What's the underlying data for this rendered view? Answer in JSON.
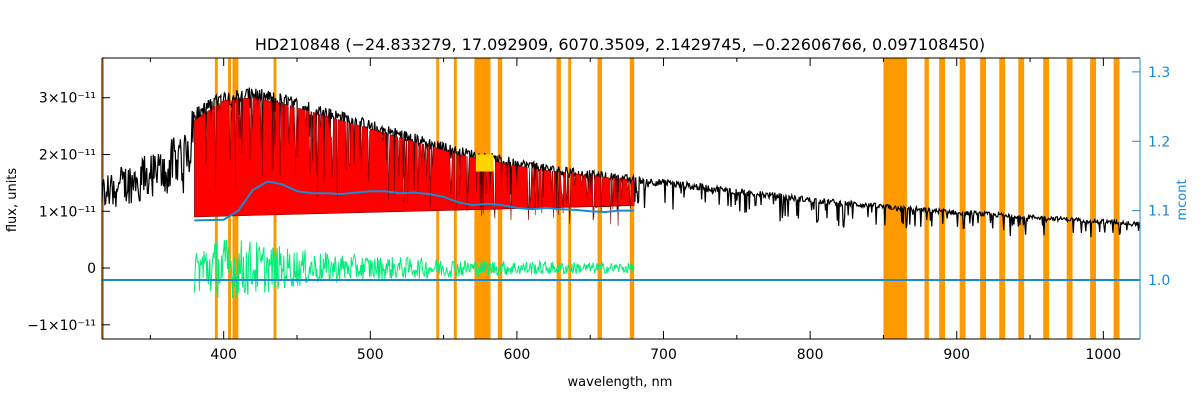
{
  "chart_data": {
    "type": "line",
    "title": "HD210848   (−24.833279, 17.092909, 6070.3509, 2.1429745, −0.22606766, 0.097108450)",
    "xlabel": "wavelength, nm",
    "ylabel": "flux, units",
    "y2label": "mcont",
    "xlim": [
      317,
      1025
    ],
    "ylim": [
      -1.25e-11,
      3.7e-11
    ],
    "y2lim": [
      0.915,
      1.32
    ],
    "xticks": [
      400,
      500,
      600,
      700,
      800,
      900,
      1000
    ],
    "xtick_labels": [
      "400",
      "500",
      "600",
      "700",
      "800",
      "900",
      "1000"
    ],
    "yticks": [
      -1e-11,
      0,
      1e-11,
      2e-11,
      3e-11
    ],
    "ytick_labels": [
      "−1×10⁻¹¹",
      "0",
      "1×10⁻¹¹",
      "2×10⁻¹¹",
      "3×10⁻¹¹"
    ],
    "y2ticks": [
      1.0,
      1.1,
      1.2,
      1.3
    ],
    "y2tick_labels": [
      "1.0",
      "1.1",
      "1.2",
      "1.3"
    ],
    "colors": {
      "observed": "#000000",
      "model": "#ff0000",
      "model_highlight": "#ffd400",
      "residual": "#00ee77",
      "mcont": "#1a8ad6",
      "masked": "#ff9900",
      "axis": "#000000",
      "right_axis": "#1a8ad6"
    },
    "masked_regions": [
      [
        317,
        318
      ],
      [
        394,
        396
      ],
      [
        403,
        405
      ],
      [
        406,
        410
      ],
      [
        434,
        436
      ],
      [
        545,
        547
      ],
      [
        557,
        559
      ],
      [
        571,
        582
      ],
      [
        587,
        590
      ],
      [
        627,
        630
      ],
      [
        635,
        637
      ],
      [
        655,
        658
      ],
      [
        677,
        680
      ],
      [
        850,
        866
      ],
      [
        878,
        881
      ],
      [
        888,
        892
      ],
      [
        902,
        906
      ],
      [
        916,
        920
      ],
      [
        929,
        933
      ],
      [
        942,
        946
      ],
      [
        959,
        963
      ],
      [
        975,
        979
      ],
      [
        991,
        995
      ],
      [
        1007,
        1011
      ]
    ],
    "series": [
      {
        "role": "observed",
        "x": [
          317,
          325,
          340,
          360,
          375,
          380,
          400,
          420,
          440,
          460,
          480,
          500,
          520,
          540,
          560,
          580,
          600,
          620,
          640,
          660,
          680,
          700,
          750,
          800,
          850,
          900,
          950,
          1000,
          1025
        ],
        "y": [
          1.3e-11,
          1.4e-11,
          1.55e-11,
          1.7e-11,
          2.1e-11,
          2.7e-11,
          3e-11,
          3.05e-11,
          2.95e-11,
          2.8e-11,
          2.65e-11,
          2.5e-11,
          2.35e-11,
          2.2e-11,
          2.05e-11,
          1.95e-11,
          1.85e-11,
          1.75e-11,
          1.68e-11,
          1.62e-11,
          1.56e-11,
          1.5e-11,
          1.35e-11,
          1.2e-11,
          1.08e-11,
          9.8e-12,
          9e-12,
          8.2e-12,
          7.8e-12
        ]
      },
      {
        "role": "model",
        "x": [
          380,
          400,
          420,
          440,
          460,
          480,
          500,
          520,
          540,
          560,
          580,
          600,
          620,
          640,
          660,
          680
        ],
        "y": [
          2.6e-11,
          2.95e-11,
          3e-11,
          2.9e-11,
          2.75e-11,
          2.6e-11,
          2.45e-11,
          2.3e-11,
          2.15e-11,
          2e-11,
          1.9e-11,
          1.8e-11,
          1.72e-11,
          1.66e-11,
          1.6e-11,
          1.55e-11
        ]
      },
      {
        "role": "mcont",
        "axis": "right",
        "x": [
          380,
          400,
          410,
          420,
          430,
          440,
          450,
          460,
          470,
          480,
          490,
          500,
          510,
          520,
          530,
          540,
          550,
          560,
          570,
          580,
          590,
          600,
          610,
          620,
          630,
          640,
          650,
          660,
          670,
          680
        ],
        "y": [
          1.086,
          1.087,
          1.1,
          1.13,
          1.142,
          1.138,
          1.128,
          1.125,
          1.125,
          1.124,
          1.126,
          1.128,
          1.128,
          1.125,
          1.126,
          1.124,
          1.12,
          1.112,
          1.108,
          1.11,
          1.108,
          1.104,
          1.102,
          1.104,
          1.102,
          1.101,
          1.099,
          1.098,
          1.1,
          1.1
        ]
      },
      {
        "role": "mcont-unity",
        "axis": "right",
        "x": [
          317,
          1025
        ],
        "y": [
          1.0,
          1.0
        ]
      },
      {
        "role": "residual",
        "x": [
          380,
          400,
          420,
          440,
          460,
          480,
          500,
          520,
          540,
          560,
          580,
          600,
          620,
          640,
          660,
          680
        ],
        "amplitude": [
          4.5e-12,
          5.5e-12,
          5e-12,
          3.8e-12,
          3e-12,
          2.5e-12,
          2.2e-12,
          2e-12,
          1.8e-12,
          1.6e-12,
          1.4e-12,
          1.3e-12,
          1.2e-12,
          1.1e-12,
          1e-12,
          9e-13
        ]
      }
    ]
  }
}
